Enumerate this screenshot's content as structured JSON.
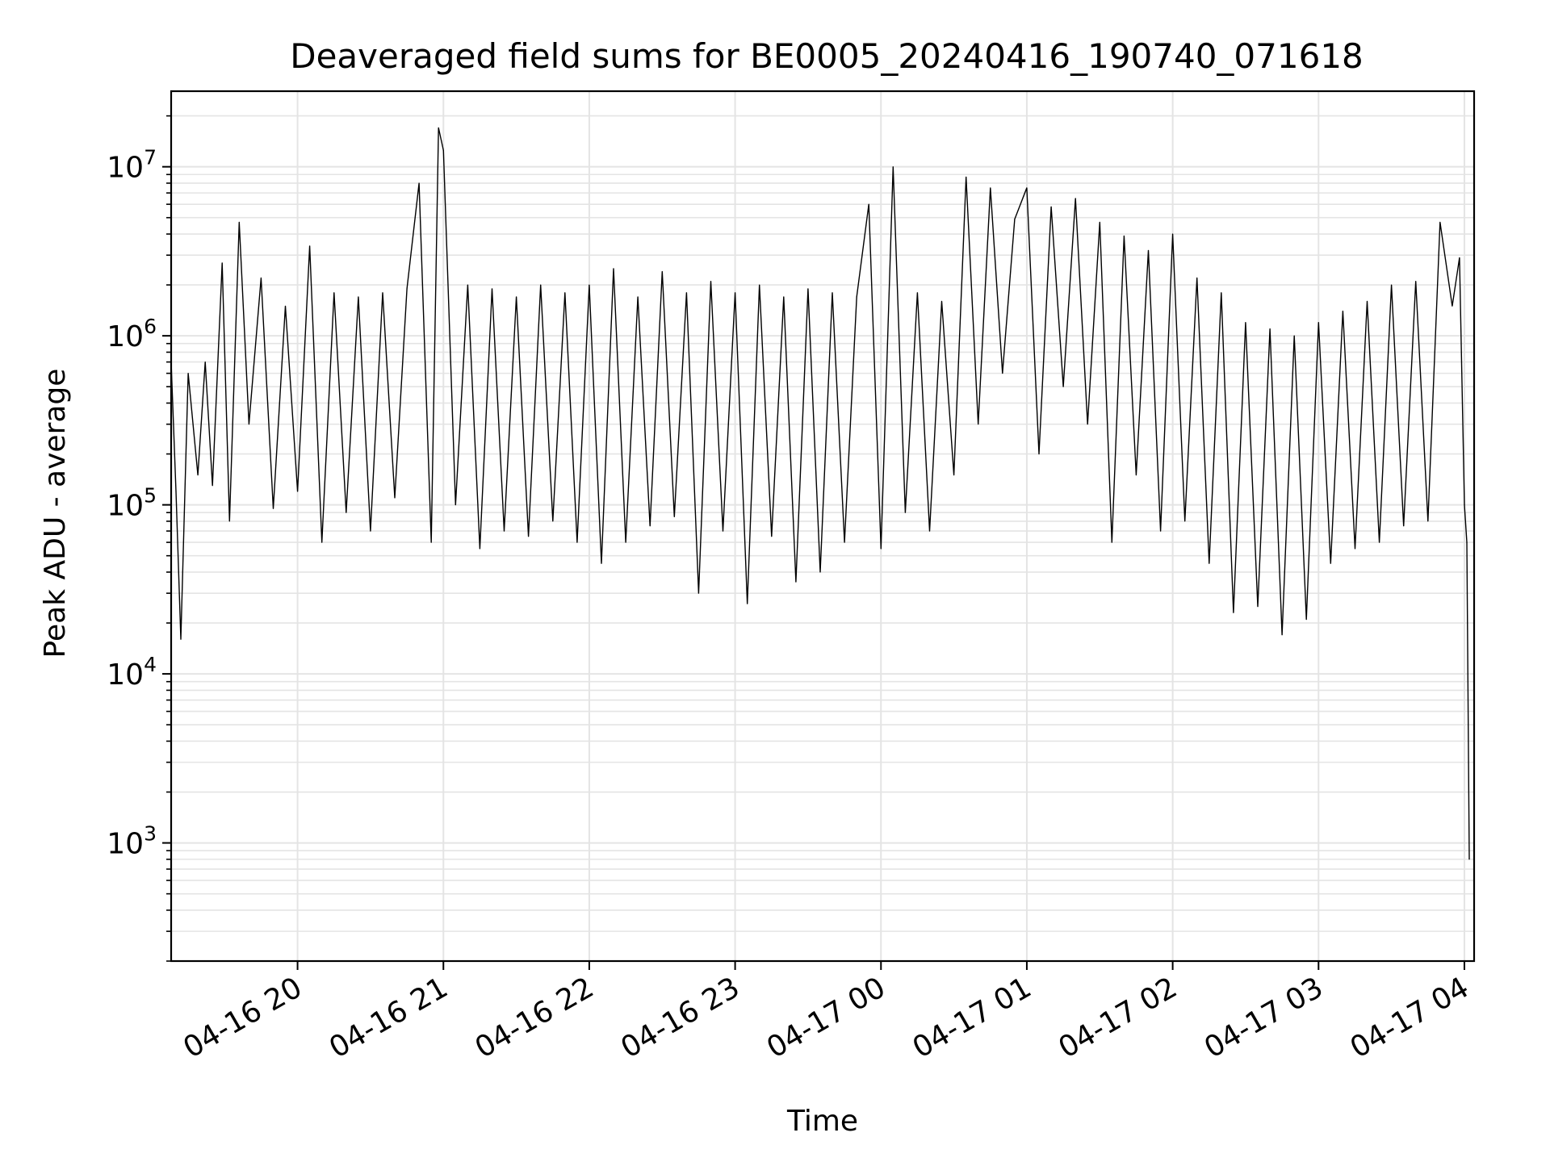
{
  "chart_data": {
    "type": "line",
    "title": "Deaveraged field sums for BE0005_20240416_190740_071618",
    "xlabel": "Time",
    "ylabel": "Peak ADU - average",
    "yscale": "log",
    "ylim": [
      200,
      28000000
    ],
    "xlim": [
      "2024-04-16 19:08",
      "2024-04-17 04:04"
    ],
    "grid": true,
    "line_color": "#000000",
    "grid_color": "#e4e4e4",
    "x_ticks": [
      {
        "value": "2024-04-16 20:00",
        "label": "04-16 20"
      },
      {
        "value": "2024-04-16 21:00",
        "label": "04-16 21"
      },
      {
        "value": "2024-04-16 22:00",
        "label": "04-16 22"
      },
      {
        "value": "2024-04-16 23:00",
        "label": "04-16 23"
      },
      {
        "value": "2024-04-17 00:00",
        "label": "04-17 00"
      },
      {
        "value": "2024-04-17 01:00",
        "label": "04-17 01"
      },
      {
        "value": "2024-04-17 02:00",
        "label": "04-17 02"
      },
      {
        "value": "2024-04-17 03:00",
        "label": "04-17 03"
      },
      {
        "value": "2024-04-17 04:00",
        "label": "04-17 04"
      }
    ],
    "y_ticks": [
      {
        "value": 1000,
        "base": "10",
        "exp": "3"
      },
      {
        "value": 10000,
        "base": "10",
        "exp": "4"
      },
      {
        "value": 100000,
        "base": "10",
        "exp": "5"
      },
      {
        "value": 1000000,
        "base": "10",
        "exp": "6"
      },
      {
        "value": 10000000,
        "base": "10",
        "exp": "7"
      }
    ],
    "series": [
      {
        "x": [
          "2024-04-16 19:08",
          "2024-04-16 19:10",
          "2024-04-16 19:12",
          "2024-04-16 19:15",
          "2024-04-16 19:19",
          "2024-04-16 19:22",
          "2024-04-16 19:25",
          "2024-04-16 19:29",
          "2024-04-16 19:32",
          "2024-04-16 19:36",
          "2024-04-16 19:40",
          "2024-04-16 19:45",
          "2024-04-16 19:50",
          "2024-04-16 19:55",
          "2024-04-16 20:00",
          "2024-04-16 20:05",
          "2024-04-16 20:10",
          "2024-04-16 20:15",
          "2024-04-16 20:20",
          "2024-04-16 20:25",
          "2024-04-16 20:30",
          "2024-04-16 20:35",
          "2024-04-16 20:40",
          "2024-04-16 20:45",
          "2024-04-16 20:50",
          "2024-04-16 20:55",
          "2024-04-16 20:58",
          "2024-04-16 21:00",
          "2024-04-16 21:05",
          "2024-04-16 21:10",
          "2024-04-16 21:15",
          "2024-04-16 21:20",
          "2024-04-16 21:25",
          "2024-04-16 21:30",
          "2024-04-16 21:35",
          "2024-04-16 21:40",
          "2024-04-16 21:45",
          "2024-04-16 21:50",
          "2024-04-16 21:55",
          "2024-04-16 22:00",
          "2024-04-16 22:05",
          "2024-04-16 22:10",
          "2024-04-16 22:15",
          "2024-04-16 22:20",
          "2024-04-16 22:25",
          "2024-04-16 22:30",
          "2024-04-16 22:35",
          "2024-04-16 22:40",
          "2024-04-16 22:45",
          "2024-04-16 22:50",
          "2024-04-16 22:55",
          "2024-04-16 23:00",
          "2024-04-16 23:05",
          "2024-04-16 23:10",
          "2024-04-16 23:15",
          "2024-04-16 23:20",
          "2024-04-16 23:25",
          "2024-04-16 23:30",
          "2024-04-16 23:35",
          "2024-04-16 23:40",
          "2024-04-16 23:45",
          "2024-04-16 23:50",
          "2024-04-16 23:55",
          "2024-04-17 00:00",
          "2024-04-17 00:05",
          "2024-04-17 00:10",
          "2024-04-17 00:15",
          "2024-04-17 00:20",
          "2024-04-17 00:25",
          "2024-04-17 00:30",
          "2024-04-17 00:35",
          "2024-04-17 00:40",
          "2024-04-17 00:45",
          "2024-04-17 00:50",
          "2024-04-17 00:55",
          "2024-04-17 01:00",
          "2024-04-17 01:05",
          "2024-04-17 01:10",
          "2024-04-17 01:15",
          "2024-04-17 01:20",
          "2024-04-17 01:25",
          "2024-04-17 01:30",
          "2024-04-17 01:35",
          "2024-04-17 01:40",
          "2024-04-17 01:45",
          "2024-04-17 01:50",
          "2024-04-17 01:55",
          "2024-04-17 02:00",
          "2024-04-17 02:05",
          "2024-04-17 02:10",
          "2024-04-17 02:15",
          "2024-04-17 02:20",
          "2024-04-17 02:25",
          "2024-04-17 02:30",
          "2024-04-17 02:35",
          "2024-04-17 02:40",
          "2024-04-17 02:45",
          "2024-04-17 02:50",
          "2024-04-17 02:55",
          "2024-04-17 03:00",
          "2024-04-17 03:05",
          "2024-04-17 03:10",
          "2024-04-17 03:15",
          "2024-04-17 03:20",
          "2024-04-17 03:25",
          "2024-04-17 03:30",
          "2024-04-17 03:35",
          "2024-04-17 03:40",
          "2024-04-17 03:45",
          "2024-04-17 03:50",
          "2024-04-17 03:55",
          "2024-04-17 03:58",
          "2024-04-17 04:00",
          "2024-04-17 04:01",
          "2024-04-17 04:02"
        ],
        "y": [
          700000,
          120000,
          16000,
          600000,
          150000,
          700000,
          130000,
          2700000,
          80000,
          4700000,
          300000,
          2200000,
          95000,
          1500000,
          120000,
          3400000,
          60000,
          1800000,
          90000,
          1700000,
          70000,
          1800000,
          110000,
          1900000,
          8000000,
          60000,
          17000000,
          12500000,
          100000,
          2000000,
          55000,
          1900000,
          70000,
          1700000,
          65000,
          2000000,
          80000,
          1800000,
          60000,
          2000000,
          45000,
          2500000,
          60000,
          1700000,
          75000,
          2400000,
          85000,
          1800000,
          30000,
          2100000,
          70000,
          1800000,
          26000,
          2000000,
          65000,
          1700000,
          35000,
          1900000,
          40000,
          1800000,
          60000,
          1700000,
          6000000,
          55000,
          10000000,
          90000,
          1800000,
          70000,
          1600000,
          150000,
          8700000,
          300000,
          7500000,
          600000,
          4900000,
          7500000,
          200000,
          5800000,
          500000,
          6500000,
          300000,
          4700000,
          60000,
          3900000,
          150000,
          3200000,
          70000,
          4000000,
          80000,
          2200000,
          45000,
          1800000,
          23000,
          1200000,
          25000,
          1100000,
          17000,
          1000000,
          21000,
          1200000,
          45000,
          1400000,
          55000,
          1600000,
          60000,
          2000000,
          75000,
          2100000,
          80000,
          4700000,
          1500000,
          2900000,
          100000,
          60000,
          800
        ]
      }
    ]
  }
}
